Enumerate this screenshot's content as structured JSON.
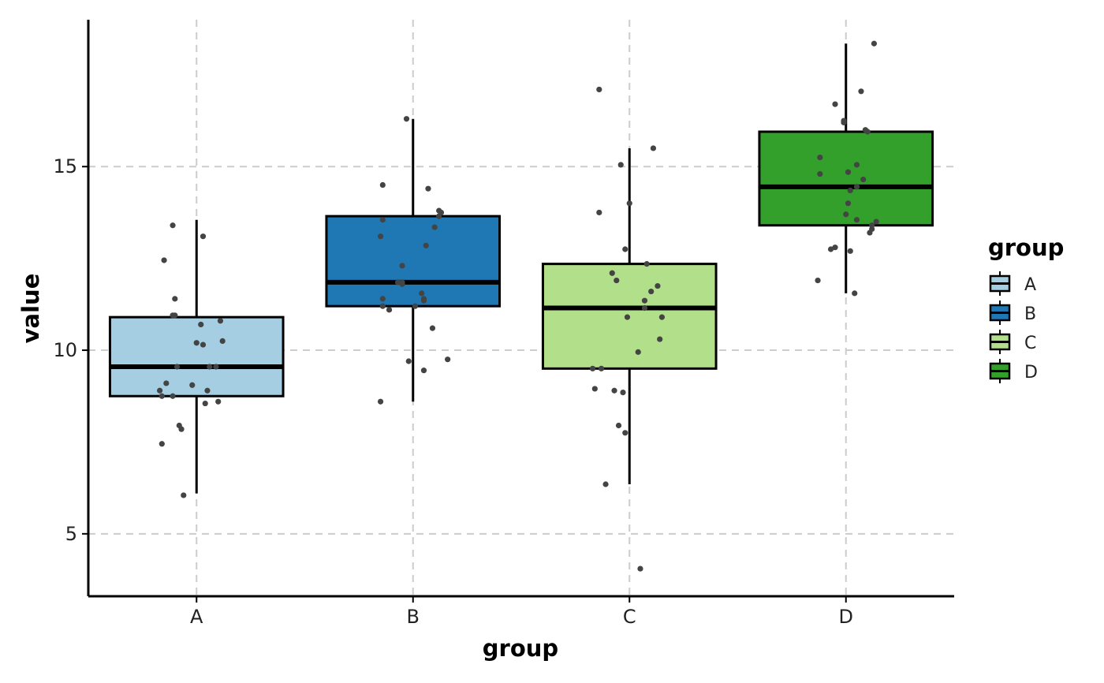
{
  "chart_data": {
    "type": "boxplot",
    "xlabel": "group",
    "ylabel": "value",
    "categories": [
      "A",
      "B",
      "C",
      "D"
    ],
    "ylim": [
      3.3,
      19.0
    ],
    "yticks": [
      5,
      10,
      15
    ],
    "grid": "dashed-major",
    "legend": {
      "title": "group",
      "placement": "right",
      "entries": [
        "A",
        "B",
        "C",
        "D"
      ]
    },
    "colors": {
      "A": "#a6cee3",
      "B": "#1f78b4",
      "C": "#b2df8a",
      "D": "#33a02c",
      "points": "#444444",
      "grid": "#cccccc"
    },
    "boxes": [
      {
        "group": "A",
        "whisker_low": 6.1,
        "q1": 8.75,
        "median": 9.55,
        "q3": 10.9,
        "whisker_high": 13.55
      },
      {
        "group": "B",
        "whisker_low": 8.6,
        "q1": 11.2,
        "median": 11.85,
        "q3": 13.65,
        "whisker_high": 16.3
      },
      {
        "group": "C",
        "whisker_low": 6.35,
        "q1": 9.5,
        "median": 11.15,
        "q3": 12.35,
        "whisker_high": 15.5
      },
      {
        "group": "D",
        "whisker_low": 11.55,
        "q1": 13.4,
        "median": 14.45,
        "q3": 15.95,
        "whisker_high": 18.35
      }
    ],
    "points": [
      {
        "group": "A",
        "jitter": [
          -0.11,
          -0.15,
          -0.1,
          -0.11,
          -0.1,
          -0.09,
          -0.14,
          -0.08,
          0.02,
          0.11,
          0.0,
          0.03,
          0.06,
          0.05,
          -0.02,
          0.12,
          -0.11,
          -0.17,
          -0.07,
          -0.16,
          0.1,
          0.04,
          -0.16,
          0.09,
          -0.06,
          0.03
        ],
        "values": [
          13.4,
          12.45,
          11.4,
          10.95,
          10.95,
          9.55,
          9.1,
          7.95,
          10.7,
          10.8,
          10.2,
          10.15,
          9.55,
          8.9,
          9.05,
          10.25,
          8.75,
          8.9,
          7.85,
          7.45,
          8.6,
          8.55,
          8.75,
          9.55,
          6.05,
          13.1
        ]
      },
      {
        "group": "B",
        "jitter": [
          -0.03,
          -0.14,
          -0.15,
          -0.14,
          0.07,
          0.12,
          0.13,
          0.12,
          0.1,
          -0.05,
          -0.07,
          -0.05,
          -0.05,
          0.05,
          0.05,
          -0.14,
          -0.11,
          0.06,
          0.04,
          0.09,
          -0.02,
          0.01,
          -0.14,
          -0.15,
          0.16,
          0.05
        ],
        "values": [
          16.3,
          14.5,
          13.1,
          13.55,
          14.4,
          13.8,
          13.75,
          13.65,
          13.35,
          12.3,
          11.85,
          11.85,
          11.8,
          11.35,
          11.4,
          11.4,
          11.1,
          12.85,
          11.55,
          10.6,
          9.7,
          11.2,
          11.2,
          8.6,
          9.75,
          9.45
        ]
      },
      {
        "group": "C",
        "jitter": [
          -0.14,
          -0.14,
          -0.04,
          0.0,
          0.11,
          0.08,
          -0.02,
          -0.08,
          -0.06,
          0.13,
          0.1,
          0.07,
          0.07,
          0.15,
          0.14,
          -0.01,
          0.04,
          -0.17,
          -0.13,
          -0.16,
          -0.03,
          -0.05,
          -0.02,
          -0.11,
          0.05,
          -0.07
        ],
        "values": [
          17.1,
          13.75,
          15.05,
          14.0,
          15.5,
          12.35,
          12.75,
          12.1,
          11.9,
          11.75,
          11.6,
          11.35,
          11.15,
          10.9,
          10.3,
          10.9,
          9.95,
          9.5,
          9.5,
          8.95,
          8.85,
          7.95,
          7.75,
          6.35,
          4.05,
          8.9
        ]
      },
      {
        "group": "D",
        "jitter": [
          0.13,
          0.07,
          -0.05,
          -0.01,
          -0.01,
          0.09,
          0.1,
          -0.12,
          0.05,
          0.01,
          -0.12,
          0.08,
          0.05,
          0.02,
          0.01,
          0.0,
          0.05,
          0.14,
          0.12,
          0.11,
          0.12,
          -0.07,
          -0.05,
          -0.13,
          0.04,
          0.02
        ],
        "values": [
          18.35,
          17.05,
          16.7,
          16.25,
          16.2,
          16.0,
          15.95,
          15.25,
          15.05,
          14.85,
          14.8,
          14.65,
          14.45,
          14.35,
          14.0,
          13.7,
          13.55,
          13.5,
          13.4,
          13.2,
          13.3,
          12.75,
          12.8,
          11.9,
          11.55,
          12.7
        ]
      }
    ]
  }
}
